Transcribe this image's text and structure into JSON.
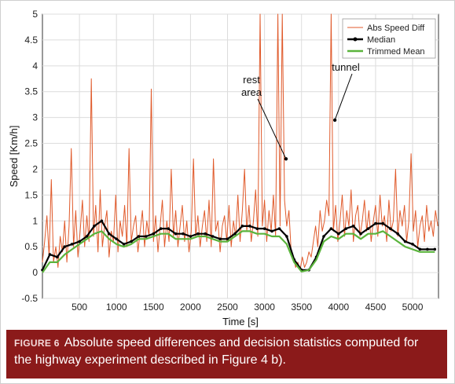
{
  "chart_data": {
    "type": "line",
    "title": "",
    "xlabel": "Time [s]",
    "ylabel": "Speed [Km/h]",
    "xlim": [
      0,
      5350
    ],
    "ylim": [
      -0.5,
      5
    ],
    "xticks": [
      500,
      1000,
      1500,
      2000,
      2500,
      3000,
      3500,
      4000,
      4500,
      5000
    ],
    "xtick_labels": [
      "500",
      "1000",
      "1500",
      "2000",
      "2500",
      "3000",
      "3500",
      "4000",
      "4500",
      "5000"
    ],
    "yticks": [
      -0.5,
      0,
      0.5,
      1,
      1.5,
      2,
      2.5,
      3,
      3.5,
      4,
      4.5,
      5
    ],
    "ytick_labels": [
      "-0.5",
      "0",
      "0.5",
      "1",
      "1.5",
      "2",
      "2.5",
      "3",
      "3.5",
      "4",
      "4.5",
      "5"
    ],
    "grid": true,
    "legend_position": "top-right",
    "series": [
      {
        "name": "Abs Speed Diff",
        "color": "#e05a2b",
        "style": "line",
        "x": [
          0,
          30,
          60,
          90,
          120,
          150,
          180,
          210,
          240,
          270,
          300,
          330,
          360,
          390,
          420,
          450,
          480,
          510,
          540,
          570,
          600,
          630,
          660,
          690,
          720,
          750,
          780,
          810,
          840,
          870,
          900,
          930,
          960,
          990,
          1020,
          1050,
          1080,
          1110,
          1140,
          1170,
          1200,
          1230,
          1260,
          1290,
          1320,
          1350,
          1380,
          1410,
          1440,
          1470,
          1500,
          1530,
          1560,
          1590,
          1620,
          1650,
          1680,
          1710,
          1740,
          1770,
          1800,
          1830,
          1860,
          1890,
          1920,
          1950,
          1980,
          2010,
          2040,
          2070,
          2100,
          2130,
          2160,
          2190,
          2220,
          2250,
          2280,
          2310,
          2340,
          2370,
          2400,
          2430,
          2460,
          2490,
          2520,
          2550,
          2580,
          2610,
          2640,
          2670,
          2700,
          2730,
          2760,
          2790,
          2820,
          2850,
          2880,
          2910,
          2940,
          2970,
          3000,
          3030,
          3060,
          3090,
          3120,
          3150,
          3180,
          3210,
          3240,
          3270,
          3300,
          3330,
          3360,
          3390,
          3420,
          3450,
          3480,
          3510,
          3540,
          3570,
          3600,
          3630,
          3660,
          3690,
          3720,
          3750,
          3780,
          3810,
          3840,
          3870,
          3900,
          3930,
          3960,
          3990,
          4020,
          4050,
          4080,
          4110,
          4140,
          4170,
          4200,
          4230,
          4260,
          4290,
          4320,
          4350,
          4380,
          4410,
          4440,
          4470,
          4500,
          4530,
          4560,
          4590,
          4620,
          4650,
          4680,
          4710,
          4740,
          4770,
          4800,
          4830,
          4860,
          4890,
          4920,
          4950,
          4980,
          5010,
          5040,
          5070,
          5100,
          5130,
          5160,
          5190,
          5220,
          5250,
          5280,
          5310,
          5340
        ],
        "y": [
          0.2,
          0.6,
          1.1,
          0.3,
          1.8,
          0.2,
          0.5,
          0.1,
          0.7,
          0.4,
          1.0,
          0.2,
          0.9,
          2.4,
          0.5,
          1.2,
          0.3,
          0.8,
          1.4,
          0.5,
          1.1,
          0.6,
          3.75,
          0.7,
          1.3,
          0.4,
          1.6,
          0.5,
          0.9,
          1.2,
          0.3,
          0.8,
          0.6,
          1.5,
          0.4,
          1.0,
          0.7,
          1.3,
          0.5,
          2.4,
          0.6,
          0.9,
          1.1,
          0.4,
          0.8,
          1.2,
          0.5,
          1.0,
          0.7,
          3.55,
          0.6,
          1.1,
          0.4,
          0.9,
          1.4,
          0.5,
          1.0,
          0.6,
          2.0,
          0.7,
          1.2,
          0.5,
          0.9,
          1.3,
          0.6,
          1.0,
          0.4,
          0.8,
          2.2,
          0.7,
          1.1,
          0.5,
          0.9,
          1.2,
          0.6,
          1.4,
          0.5,
          2.2,
          0.8,
          1.0,
          0.4,
          0.9,
          1.1,
          0.6,
          1.3,
          0.5,
          1.0,
          0.7,
          1.5,
          0.6,
          1.2,
          2.0,
          0.8,
          1.3,
          0.6,
          1.0,
          1.6,
          0.7,
          5.0,
          0.9,
          1.4,
          0.6,
          1.2,
          0.8,
          1.5,
          0.7,
          5.0,
          0.9,
          5.0,
          1.4,
          0.9,
          1.2,
          0.4,
          0.3,
          0.1,
          0.2,
          0.05,
          0.3,
          0.1,
          0.2,
          0.4,
          0.3,
          0.6,
          0.9,
          0.5,
          1.2,
          0.8,
          1.0,
          1.4,
          1.1,
          5.0,
          0.8,
          1.3,
          0.6,
          1.0,
          1.5,
          0.7,
          1.2,
          0.9,
          1.6,
          0.6,
          1.1,
          1.3,
          0.7,
          1.0,
          1.4,
          0.8,
          1.2,
          0.6,
          1.0,
          1.3,
          0.7,
          1.5,
          0.9,
          1.1,
          0.6,
          1.4,
          0.8,
          1.0,
          2.0,
          0.7,
          1.2,
          0.9,
          1.3,
          0.6,
          1.0,
          2.3,
          0.8,
          1.2,
          0.5,
          0.9,
          1.1,
          0.6,
          1.3,
          0.8,
          1.0,
          0.7,
          1.2,
          0.9
        ]
      },
      {
        "name": "Median",
        "color": "#000000",
        "style": "line-marker",
        "x": [
          0,
          100,
          200,
          300,
          400,
          500,
          600,
          700,
          800,
          900,
          1000,
          1100,
          1200,
          1300,
          1400,
          1500,
          1600,
          1700,
          1800,
          1900,
          2000,
          2100,
          2200,
          2300,
          2400,
          2500,
          2600,
          2700,
          2800,
          2900,
          3000,
          3100,
          3200,
          3300,
          3400,
          3500,
          3600,
          3700,
          3800,
          3900,
          4000,
          4100,
          4200,
          4300,
          4400,
          4500,
          4600,
          4700,
          4800,
          4900,
          5000,
          5100,
          5200,
          5300
        ],
        "y": [
          0.05,
          0.35,
          0.3,
          0.5,
          0.55,
          0.6,
          0.7,
          0.9,
          1.0,
          0.75,
          0.65,
          0.55,
          0.6,
          0.7,
          0.7,
          0.75,
          0.85,
          0.85,
          0.75,
          0.75,
          0.7,
          0.75,
          0.75,
          0.7,
          0.65,
          0.65,
          0.75,
          0.9,
          0.9,
          0.85,
          0.85,
          0.8,
          0.85,
          0.7,
          0.25,
          0.05,
          0.05,
          0.3,
          0.7,
          0.85,
          0.75,
          0.85,
          0.9,
          0.75,
          0.85,
          0.95,
          0.95,
          0.85,
          0.75,
          0.6,
          0.55,
          0.45,
          0.45,
          0.45
        ]
      },
      {
        "name": "Trimmed Mean",
        "color": "#5ab43c",
        "style": "line",
        "x": [
          0,
          100,
          200,
          300,
          400,
          500,
          600,
          700,
          800,
          900,
          1000,
          1100,
          1200,
          1300,
          1400,
          1500,
          1600,
          1700,
          1800,
          1900,
          2000,
          2100,
          2200,
          2300,
          2400,
          2500,
          2600,
          2700,
          2800,
          2900,
          3000,
          3100,
          3200,
          3300,
          3400,
          3500,
          3600,
          3700,
          3800,
          3900,
          4000,
          4100,
          4200,
          4300,
          4400,
          4500,
          4600,
          4700,
          4800,
          4900,
          5000,
          5100,
          5200,
          5300
        ],
        "y": [
          0.0,
          0.2,
          0.2,
          0.35,
          0.45,
          0.55,
          0.65,
          0.75,
          0.8,
          0.65,
          0.55,
          0.5,
          0.55,
          0.65,
          0.65,
          0.7,
          0.75,
          0.75,
          0.65,
          0.65,
          0.65,
          0.7,
          0.7,
          0.65,
          0.6,
          0.6,
          0.7,
          0.8,
          0.8,
          0.75,
          0.75,
          0.7,
          0.7,
          0.55,
          0.2,
          0.02,
          0.05,
          0.25,
          0.6,
          0.7,
          0.65,
          0.75,
          0.75,
          0.65,
          0.75,
          0.75,
          0.8,
          0.7,
          0.6,
          0.5,
          0.45,
          0.4,
          0.4,
          0.4
        ]
      }
    ],
    "annotations": [
      {
        "lines": [
          "rest",
          "area"
        ],
        "x": 3290,
        "y": 2.2
      },
      {
        "lines": [
          "tunnel"
        ],
        "x": 3950,
        "y": 2.95
      }
    ]
  },
  "caption": {
    "label": "FIGURE 6",
    "text": "Absolute speed differences and decision statistics computed for the highway experiment described in Figure 4 b)."
  }
}
